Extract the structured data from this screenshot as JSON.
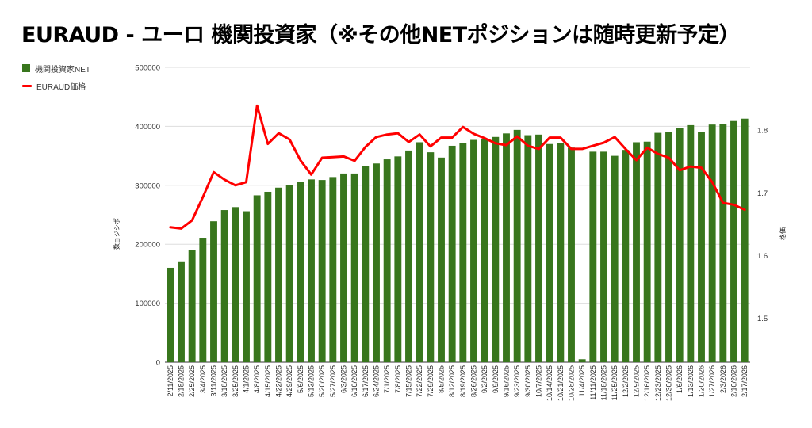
{
  "title": "EURAUD - ユーロ 機関投資家（※その他NETポジションは随時更新予定）",
  "colors": {
    "bar": "#38761d",
    "line": "#ff0000",
    "grid": "#dddddd"
  },
  "chart_data": {
    "type": "bar",
    "title": "EURAUD - ユーロ 機関投資家（※その他NETポジションは随時更新予定）",
    "legend": {
      "position": "top-left"
    },
    "grid": true,
    "categories": [
      "2/11/2025",
      "2/18/2025",
      "2/25/2025",
      "3/4/2025",
      "3/11/2025",
      "3/18/2025",
      "3/25/2025",
      "4/1/2025",
      "4/8/2025",
      "4/15/2025",
      "4/22/2025",
      "4/29/2025",
      "5/6/2025",
      "5/13/2025",
      "5/20/2025",
      "5/27/2025",
      "6/3/2025",
      "6/10/2025",
      "6/17/2025",
      "6/24/2025",
      "7/1/2025",
      "7/8/2025",
      "7/15/2025",
      "7/22/2025",
      "7/29/2025",
      "8/5/2025",
      "8/12/2025",
      "8/19/2025",
      "8/26/2025",
      "9/2/2025",
      "9/9/2025",
      "9/16/2025",
      "9/23/2025",
      "9/30/2025",
      "10/7/2025",
      "10/14/2025",
      "10/21/2025",
      "10/28/2025",
      "11/4/2025",
      "11/11/2025",
      "11/18/2025",
      "11/25/2025",
      "12/2/2025",
      "12/9/2025",
      "12/16/2025",
      "12/23/2025",
      "12/30/2025",
      "1/6/2026",
      "1/13/2026",
      "1/20/2026",
      "1/27/2026",
      "2/3/2026",
      "2/10/2026",
      "2/17/2026"
    ],
    "x_tick_labels": [
      "2/11/2025",
      "2/18/2025",
      "2/25/2025",
      "3/4/2025",
      "3/11/2025",
      "3/18/2025",
      "3/25/2025",
      "4/1/2025",
      "4/8/2025",
      "4/15/2025",
      "4/22/2025",
      "4/29/2025",
      "5/6/2025",
      "5/13/2025",
      "5/20/2025",
      "5/27/2025",
      "6/3/2025",
      "6/10/2025",
      "6/17/2025",
      "6/24/2025",
      "7/1/2025",
      "7/8/2025",
      "7/15/2025",
      "7/22/2025",
      "7/29/2025",
      "8/5/2025",
      "8/12/2025",
      "8/19/2025",
      "8/26/2025",
      "9/2/2025",
      "9/9/2025",
      "9/16/2025",
      "9/23/2025",
      "9/30/2025",
      "10/7/2025",
      "10/14/2025",
      "10/21/2025",
      "10/28/2025",
      "11/4/2025",
      "11/11/2025",
      "11/18/2025",
      "11/25/2025",
      "12/2/2025",
      "12/9/2025",
      "12/16/2025",
      "12/23/2025",
      "12/30/2025",
      "1/6/2026",
      "1/13/2026",
      "1/20/2026",
      "1/27/2026",
      "2/3/2026",
      "2/10/2026",
      "2/17/2026"
    ],
    "ylabel": "数ョジシボ",
    "y2label": "格価",
    "ylim": [
      0,
      500000
    ],
    "y2lim": [
      1.43,
      1.9
    ],
    "yticks": [
      "0",
      "100000",
      "200000",
      "300000",
      "400000",
      "500000"
    ],
    "y2ticks": [
      "1.5",
      "1.6",
      "1.7",
      "1.8"
    ],
    "series": [
      {
        "name": "機関投資家NET",
        "type": "bar",
        "axis": "left",
        "values": [
          160000,
          171000,
          190000,
          211000,
          239000,
          258000,
          263000,
          256000,
          283000,
          289000,
          296000,
          300000,
          306000,
          310000,
          309000,
          314000,
          320000,
          320000,
          332000,
          337000,
          344000,
          349000,
          359000,
          373000,
          356000,
          347000,
          367000,
          371000,
          377000,
          378000,
          382000,
          388000,
          394000,
          385000,
          386000,
          370000,
          371000,
          364000,
          5000,
          357000,
          357000,
          350000,
          360000,
          373000,
          374000,
          389000,
          390000,
          397000,
          402000,
          391000,
          403000,
          404000,
          409000,
          413000
        ]
      },
      {
        "name": "EURAUD価格",
        "type": "line",
        "axis": "right",
        "values": [
          1.645,
          1.643,
          1.656,
          1.693,
          1.733,
          1.721,
          1.712,
          1.717,
          1.839,
          1.778,
          1.795,
          1.785,
          1.752,
          1.729,
          1.756,
          1.757,
          1.758,
          1.751,
          1.773,
          1.789,
          1.793,
          1.795,
          1.781,
          1.793,
          1.774,
          1.788,
          1.788,
          1.805,
          1.794,
          1.787,
          1.779,
          1.776,
          1.79,
          1.775,
          1.77,
          1.788,
          1.788,
          1.77,
          1.77,
          1.775,
          1.78,
          1.789,
          1.77,
          1.752,
          1.772,
          1.762,
          1.756,
          1.736,
          1.742,
          1.74,
          1.717,
          1.684,
          1.681,
          1.673
        ]
      }
    ]
  }
}
